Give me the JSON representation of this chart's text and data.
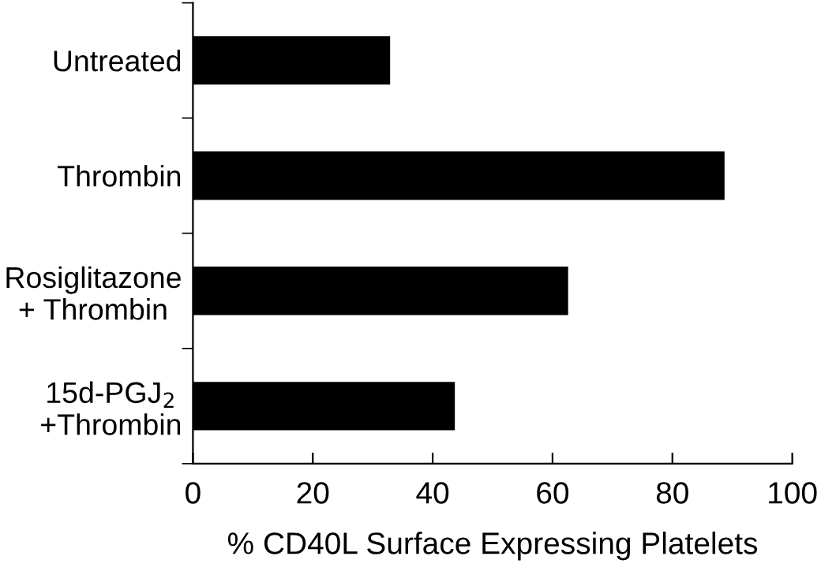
{
  "chart_data": {
    "type": "bar",
    "orientation": "horizontal",
    "categories": [
      "Untreated",
      "Thrombin",
      "Rosiglitazone\n+ Thrombin",
      "15d-PGJ$_{2}$\n+Thrombin"
    ],
    "values": [
      32.9,
      88.7,
      62.6,
      43.7
    ],
    "color": "#000000",
    "xlabel": "% CD40L Surface Expressing Platelets",
    "xlim": [
      0,
      100
    ],
    "xticks": [
      0,
      20,
      40,
      60,
      80,
      100
    ],
    "grid": false
  }
}
